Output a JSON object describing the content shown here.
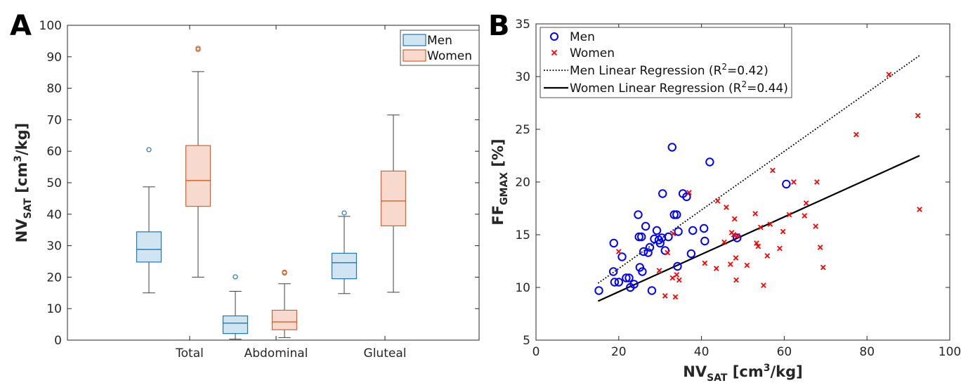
{
  "chart_data": [
    {
      "panel": "A",
      "type": "box",
      "ylabel": {
        "main": "NV",
        "sub": "SAT",
        "rest_before": " [cm",
        "sup": "3",
        "rest_after": "/kg]"
      },
      "ylim": [
        0,
        100
      ],
      "yticks": [
        0,
        10,
        20,
        30,
        40,
        50,
        60,
        70,
        80,
        90,
        100
      ],
      "categories": [
        "Total",
        "Abdominal",
        "Gluteal"
      ],
      "legend": {
        "location": "top-right",
        "entries": [
          "Men",
          "Women"
        ]
      },
      "colors": {
        "Men": "#1f77b4",
        "Men_fill": "#d0e4f2",
        "Women": "#d9602b",
        "Women_fill": "#f8d9cd",
        "whisker": "#404040"
      },
      "series": [
        {
          "name": "Men",
          "boxes": [
            {
              "category": "Total",
              "min": 15.0,
              "q1": 24.8,
              "median": 28.8,
              "q3": 34.4,
              "max": 48.7,
              "outliers": [
                60.5
              ]
            },
            {
              "category": "Abdominal",
              "min": 0.3,
              "q1": 2.1,
              "median": 5.4,
              "q3": 7.7,
              "max": 15.5,
              "outliers": [
                20.1
              ]
            },
            {
              "category": "Gluteal",
              "min": 14.8,
              "q1": 19.5,
              "median": 24.6,
              "q3": 27.6,
              "max": 39.3,
              "outliers": [
                40.4
              ]
            }
          ]
        },
        {
          "name": "Women",
          "boxes": [
            {
              "category": "Total",
              "min": 20.0,
              "q1": 42.5,
              "median": 50.7,
              "q3": 61.8,
              "max": 85.3,
              "outliers": [
                92.3,
                92.7
              ]
            },
            {
              "category": "Abdominal",
              "min": 0.8,
              "q1": 3.3,
              "median": 5.8,
              "q3": 9.5,
              "max": 17.9,
              "outliers": [
                21.3,
                21.6
              ]
            },
            {
              "category": "Gluteal",
              "min": 15.2,
              "q1": 36.3,
              "median": 44.2,
              "q3": 53.7,
              "max": 71.5,
              "outliers": []
            }
          ]
        }
      ]
    },
    {
      "panel": "B",
      "type": "scatter",
      "xlabel": {
        "main": "NV",
        "sub": "SAT",
        "rest_before": " [cm",
        "sup": "3",
        "rest_after": "/kg]"
      },
      "ylabel": {
        "main": "FF",
        "sub": "GMAX",
        "rest_after": " [%]"
      },
      "xlim": [
        0,
        100
      ],
      "ylim": [
        5,
        35
      ],
      "xticks": [
        0,
        20,
        40,
        60,
        80,
        100
      ],
      "yticks": [
        5,
        10,
        15,
        20,
        25,
        30,
        35
      ],
      "legend": {
        "location": "top-left",
        "entries": [
          {
            "label": "Men"
          },
          {
            "label": "Women"
          },
          {
            "label_before": "Men Linear Regression (R",
            "sup": "2",
            "label_after": "=0.42)"
          },
          {
            "label_before": "Women Linear Regression (R",
            "sup": "2",
            "label_after": "=0.44)"
          }
        ]
      },
      "colors": {
        "Men": "#0000ff",
        "Women": "#ff0000",
        "regression": "#000000"
      },
      "series": [
        {
          "name": "Men",
          "marker": "circle",
          "points": [
            [
              15.2,
              9.7
            ],
            [
              18.7,
              11.5
            ],
            [
              19.0,
              10.5
            ],
            [
              18.8,
              14.2
            ],
            [
              20.0,
              10.5
            ],
            [
              20.8,
              12.9
            ],
            [
              21.8,
              10.9
            ],
            [
              22.5,
              10.9
            ],
            [
              22.8,
              10.0
            ],
            [
              23.7,
              10.3
            ],
            [
              24.7,
              16.9
            ],
            [
              24.9,
              14.8
            ],
            [
              25.1,
              11.9
            ],
            [
              25.7,
              11.5
            ],
            [
              25.5,
              14.8
            ],
            [
              26.0,
              13.4
            ],
            [
              26.5,
              15.8
            ],
            [
              27.1,
              13.3
            ],
            [
              27.5,
              13.8
            ],
            [
              28.0,
              9.7
            ],
            [
              28.6,
              14.6
            ],
            [
              29.2,
              15.4
            ],
            [
              29.7,
              14.5
            ],
            [
              30.0,
              14.2
            ],
            [
              30.4,
              14.7
            ],
            [
              30.6,
              18.9
            ],
            [
              31.2,
              13.5
            ],
            [
              32.0,
              14.8
            ],
            [
              32.9,
              23.3
            ],
            [
              33.4,
              16.9
            ],
            [
              34.0,
              16.9
            ],
            [
              34.2,
              12.0
            ],
            [
              34.4,
              15.3
            ],
            [
              35.5,
              18.9
            ],
            [
              36.4,
              18.6
            ],
            [
              37.5,
              13.2
            ],
            [
              37.9,
              15.4
            ],
            [
              40.6,
              15.6
            ],
            [
              40.8,
              14.4
            ],
            [
              42.0,
              21.9
            ],
            [
              48.6,
              14.7
            ],
            [
              60.5,
              19.8
            ]
          ],
          "regression": {
            "x0": 15.0,
            "y0": 10.4,
            "x1": 92.7,
            "y1": 32.0
          }
        },
        {
          "name": "Women",
          "marker": "x",
          "points": [
            [
              20.0,
              13.4
            ],
            [
              29.8,
              11.6
            ],
            [
              31.2,
              9.2
            ],
            [
              31.8,
              13.3
            ],
            [
              33.0,
              10.9
            ],
            [
              33.2,
              15.1
            ],
            [
              33.7,
              9.1
            ],
            [
              34.0,
              11.2
            ],
            [
              34.6,
              10.7
            ],
            [
              37.0,
              19.0
            ],
            [
              40.8,
              12.3
            ],
            [
              43.6,
              11.8
            ],
            [
              43.9,
              18.2
            ],
            [
              45.5,
              14.3
            ],
            [
              46.0,
              17.6
            ],
            [
              47.0,
              12.2
            ],
            [
              47.3,
              15.2
            ],
            [
              47.8,
              15.0
            ],
            [
              48.0,
              16.5
            ],
            [
              48.3,
              12.8
            ],
            [
              48.4,
              10.7
            ],
            [
              48.7,
              14.9
            ],
            [
              51.0,
              12.1
            ],
            [
              53.0,
              17.0
            ],
            [
              53.3,
              14.2
            ],
            [
              53.7,
              13.9
            ],
            [
              54.3,
              15.7
            ],
            [
              55.0,
              10.2
            ],
            [
              55.9,
              13.0
            ],
            [
              56.6,
              16.0
            ],
            [
              57.2,
              21.1
            ],
            [
              58.9,
              13.7
            ],
            [
              59.7,
              15.3
            ],
            [
              61.2,
              16.9
            ],
            [
              62.3,
              20.0
            ],
            [
              64.9,
              16.8
            ],
            [
              65.3,
              18.0
            ],
            [
              67.6,
              15.8
            ],
            [
              67.9,
              20.0
            ],
            [
              68.7,
              13.8
            ],
            [
              69.4,
              11.9
            ],
            [
              77.4,
              24.5
            ],
            [
              85.3,
              30.2
            ],
            [
              92.3,
              26.3
            ],
            [
              92.7,
              17.4
            ]
          ],
          "regression": {
            "x0": 15.0,
            "y0": 8.7,
            "x1": 92.7,
            "y1": 22.5
          }
        }
      ]
    }
  ]
}
